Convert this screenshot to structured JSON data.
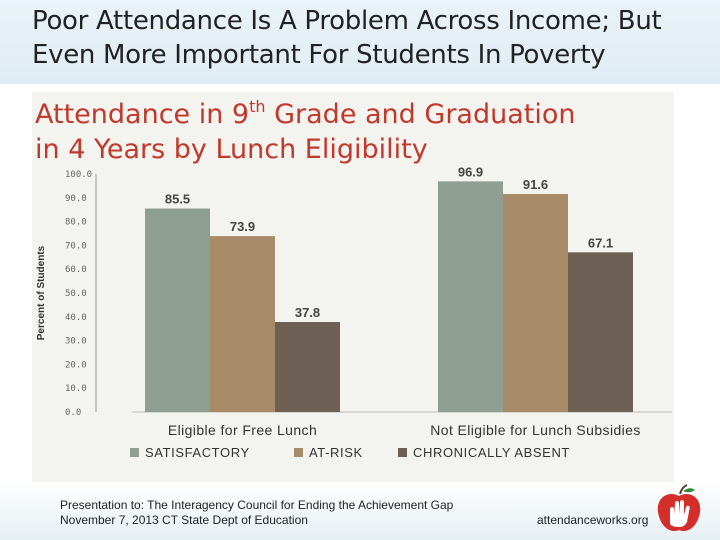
{
  "slide": {
    "title_line_1": "Poor Attendance Is A Problem Across Income; But",
    "title_line_2": "Even More Important For Students In Poverty"
  },
  "chart_data": {
    "type": "bar",
    "title_line_1": "Attendance in 9th Grade and Graduation",
    "title_line_1_main": "Attendance in 9",
    "title_line_1_sup": "th",
    "title_line_1_rest": " Grade and Graduation",
    "title_line_2": "in 4 Years by Lunch Eligibility",
    "ylabel": "Percent of Students",
    "ylim": [
      0,
      100
    ],
    "yticks": [
      "0.0",
      "10.0",
      "20.0",
      "30.0",
      "40.0",
      "50.0",
      "60.0",
      "70.0",
      "80.0",
      "90.0",
      "100.0"
    ],
    "categories": [
      "Eligible for Free Lunch",
      "Not Eligible for Lunch Subsidies"
    ],
    "series": [
      {
        "name": "SATISFACTORY",
        "color": "#8e9e92",
        "values": [
          85.5,
          96.9
        ]
      },
      {
        "name": "AT-RISK",
        "color": "#a78b66",
        "values": [
          73.9,
          91.6
        ]
      },
      {
        "name": "CHRONICALLY ABSENT",
        "color": "#6e5f54",
        "values": [
          37.8,
          67.1
        ]
      }
    ],
    "data_labels": [
      [
        "85.5",
        "96.9"
      ],
      [
        "73.9",
        "91.6"
      ],
      [
        "37.8",
        "67.1"
      ]
    ],
    "legend_position": "bottom"
  },
  "footer": {
    "line_1": "Presentation to: The Interagency Council for Ending the Achievement Gap",
    "line_2": "November 7, 2013 CT State Dept of Education",
    "site": "attendanceworks.org"
  },
  "colors": {
    "title_red": "#c0392b",
    "logo_red": "#d42e2a"
  },
  "icons": {
    "logo": "apple-hand-logo-icon"
  }
}
